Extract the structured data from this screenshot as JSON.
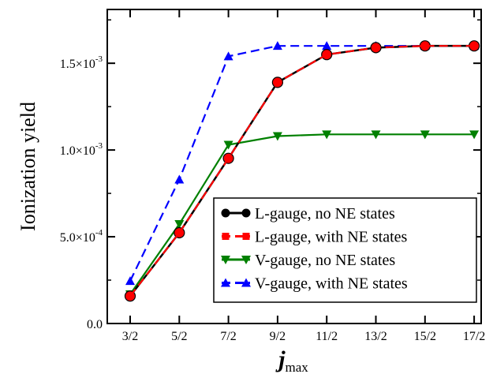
{
  "chart_data": {
    "type": "line",
    "categories": [
      "3/2",
      "5/2",
      "7/2",
      "9/2",
      "11/2",
      "13/2",
      "15/2",
      "17/2"
    ],
    "xlabel": "j",
    "xlabel_sub": "max",
    "ylabel": "Ionization yield",
    "ylim": [
      0,
      0.00181
    ],
    "yticks": [
      {
        "value": 0,
        "mantissa": "0.0",
        "exponent": ""
      },
      {
        "value": 0.0005,
        "mantissa": "5.0×10",
        "exponent": "-4"
      },
      {
        "value": 0.001,
        "mantissa": "1.0×10",
        "exponent": "-3"
      },
      {
        "value": 0.0015,
        "mantissa": "1.5×10",
        "exponent": "-3"
      }
    ],
    "grid": false,
    "legend_position": "bottom-right",
    "series": [
      {
        "name": "V-gauge, with NE states",
        "color": "#0000ff",
        "dash": "dashed",
        "marker": "triangle-up",
        "values": [
          0.000245,
          0.00083,
          0.00154,
          0.0016,
          0.0016,
          0.0016,
          0.0016,
          0.0016
        ]
      },
      {
        "name": "V-gauge, no NE states",
        "color": "#008000",
        "dash": "solid",
        "marker": "triangle-down",
        "values": [
          0.000168,
          0.000573,
          0.00103,
          0.00108,
          0.00109,
          0.00109,
          0.00109,
          0.00109
        ]
      },
      {
        "name": "L-gauge, no NE states",
        "color": "#000000",
        "dash": "solid",
        "marker": "circle",
        "values": [
          0.000158,
          0.000523,
          0.000952,
          0.00139,
          0.00155,
          0.00159,
          0.0016,
          0.0016
        ]
      },
      {
        "name": "L-gauge, with NE states",
        "color": "#ff0000",
        "dash": "dashed",
        "marker": "square",
        "values": [
          0.000158,
          0.000523,
          0.000952,
          0.00139,
          0.00155,
          0.00159,
          0.0016,
          0.0016
        ]
      }
    ],
    "legend_order": [
      2,
      3,
      1,
      0
    ]
  }
}
